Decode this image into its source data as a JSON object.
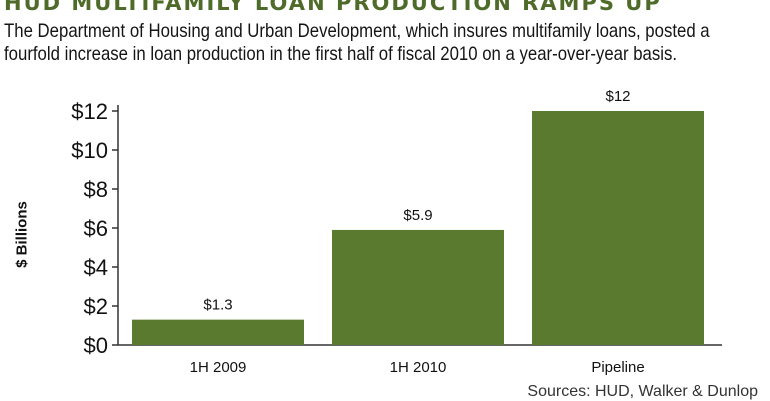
{
  "title": "HUD MULTIFAMILY LOAN PRODUCTION RAMPS UP",
  "subtitle": "The Department of Housing and Urban Development, which insures multifamily loans, posted a fourfold increase in loan production in the first half of fiscal 2010 on a year-over-year basis.",
  "source": "Sources: HUD, Walker & Dunlop",
  "colors": {
    "bar": "#5a7a2f",
    "title": "#4e6b2a",
    "axis": "#333333"
  },
  "chart_data": {
    "type": "bar",
    "categories": [
      "1H 2009",
      "1H 2010",
      "Pipeline"
    ],
    "values": [
      1.3,
      5.9,
      12
    ],
    "data_labels": [
      "$1.3",
      "$5.9",
      "$12"
    ],
    "ylabel": "$ Billions",
    "xlabel": "",
    "ylim": [
      0,
      12
    ],
    "yticks": [
      0,
      2,
      4,
      6,
      8,
      10,
      12
    ],
    "ytick_labels": [
      "$0",
      "$2",
      "$4",
      "$6",
      "$8",
      "$10",
      "$12"
    ],
    "grid": false
  }
}
